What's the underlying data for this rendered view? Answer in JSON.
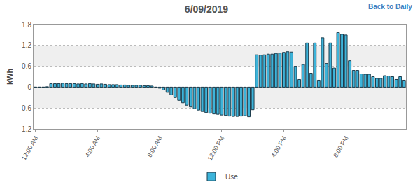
{
  "chart_data": {
    "type": "bar",
    "title": "6/09/2019",
    "y_label": "kWh",
    "categories": [
      "12:00 AM",
      null,
      null,
      null,
      null,
      null,
      null,
      null,
      null,
      null,
      null,
      null,
      null,
      null,
      null,
      null,
      "4:00 AM",
      null,
      null,
      null,
      null,
      null,
      null,
      null,
      null,
      null,
      null,
      null,
      null,
      null,
      null,
      null,
      "8:00 AM",
      null,
      null,
      null,
      null,
      null,
      null,
      null,
      null,
      null,
      null,
      null,
      null,
      null,
      null,
      null,
      "12:00 PM",
      null,
      null,
      null,
      null,
      null,
      null,
      null,
      null,
      null,
      null,
      null,
      null,
      null,
      null,
      null,
      "4:00 PM",
      null,
      null,
      null,
      null,
      null,
      null,
      null,
      null,
      null,
      null,
      null,
      null,
      null,
      null,
      null,
      "8:00 PM",
      null,
      null,
      null,
      null,
      null,
      null,
      null,
      null,
      null,
      null,
      null,
      null,
      null,
      null,
      null
    ],
    "series": [
      {
        "name": "Use",
        "color": "#3db4da",
        "values": [
          0.0,
          0.0,
          0.0,
          0.01,
          0.1,
          0.1,
          0.1,
          0.11,
          0.1,
          0.1,
          0.1,
          0.09,
          0.1,
          0.09,
          0.1,
          0.09,
          0.08,
          0.09,
          0.08,
          0.07,
          0.07,
          0.07,
          0.06,
          0.06,
          0.05,
          0.05,
          0.05,
          0.05,
          0.04,
          0.04,
          0.03,
          0.0,
          -0.03,
          -0.08,
          -0.15,
          -0.22,
          -0.3,
          -0.38,
          -0.45,
          -0.52,
          -0.57,
          -0.62,
          -0.66,
          -0.7,
          -0.73,
          -0.75,
          -0.77,
          -0.78,
          -0.8,
          -0.81,
          -0.83,
          -0.84,
          -0.84,
          -0.83,
          -0.82,
          -0.85,
          -0.65,
          0.93,
          0.92,
          0.93,
          0.95,
          0.95,
          0.97,
          0.98,
          1.0,
          1.02,
          1.01,
          0.6,
          0.22,
          0.65,
          1.27,
          0.4,
          1.27,
          0.2,
          1.42,
          0.68,
          1.27,
          0.55,
          1.57,
          1.52,
          1.5,
          0.76,
          0.48,
          0.48,
          0.38,
          0.37,
          0.37,
          0.3,
          0.25,
          0.25,
          0.33,
          0.32,
          0.3,
          0.22,
          0.3,
          0.2
        ]
      }
    ],
    "ylim": [
      -1.2,
      1.8
    ],
    "yticks": [
      -1.2,
      -0.6,
      0,
      0.6,
      1.2,
      1.8
    ],
    "grid": true,
    "legend": "bottom",
    "annotations": [
      {
        "text": "Back to Daily"
      }
    ]
  }
}
